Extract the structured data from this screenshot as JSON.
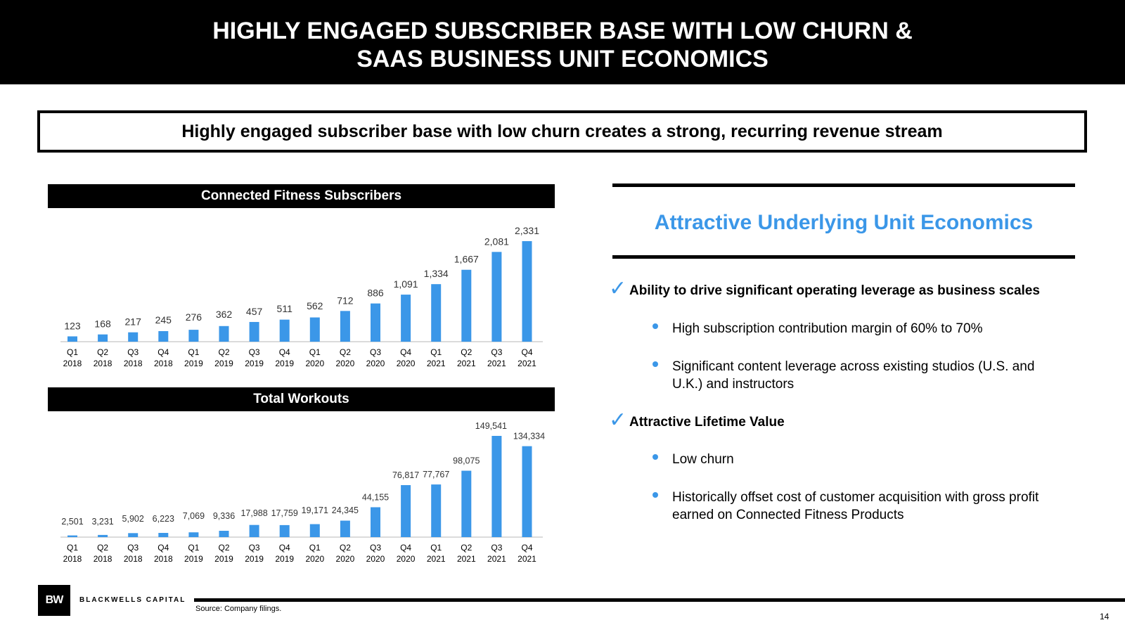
{
  "header": {
    "title_line1": "HIGHLY ENGAGED SUBSCRIBER BASE WITH LOW CHURN &",
    "title_line2": "SAAS BUSINESS UNIT ECONOMICS"
  },
  "callout": "Highly engaged subscriber base with low churn creates a strong, recurring revenue stream",
  "chart_data": [
    {
      "type": "bar",
      "title": "Connected Fitness Subscribers",
      "categories": [
        "Q1 2018",
        "Q2 2018",
        "Q3 2018",
        "Q4 2018",
        "Q1 2019",
        "Q2 2019",
        "Q3 2019",
        "Q4 2019",
        "Q1 2020",
        "Q2 2020",
        "Q3 2020",
        "Q4 2020",
        "Q1 2021",
        "Q2 2021",
        "Q3 2021",
        "Q4 2021"
      ],
      "values": [
        123,
        168,
        217,
        245,
        276,
        362,
        457,
        511,
        562,
        712,
        886,
        1091,
        1334,
        1667,
        2081,
        2331
      ],
      "value_labels": [
        "123",
        "168",
        "217",
        "245",
        "276",
        "362",
        "457",
        "511",
        "562",
        "712",
        "886",
        "1,091",
        "1,334",
        "1,667",
        "2,081",
        "2,331"
      ],
      "ylim": [
        0,
        2331
      ],
      "grid": false,
      "color": "#3b97e8"
    },
    {
      "type": "bar",
      "title": "Total Workouts",
      "categories": [
        "Q1 2018",
        "Q2 2018",
        "Q3 2018",
        "Q4 2018",
        "Q1 2019",
        "Q2 2019",
        "Q3 2019",
        "Q4 2019",
        "Q1 2020",
        "Q2 2020",
        "Q3 2020",
        "Q4 2020",
        "Q1 2021",
        "Q2 2021",
        "Q3 2021",
        "Q4 2021"
      ],
      "values": [
        2501,
        3231,
        5902,
        6223,
        7069,
        9336,
        17988,
        17759,
        19171,
        24345,
        44155,
        76817,
        77767,
        98075,
        149541,
        134334
      ],
      "value_labels": [
        "2,501",
        "3,231",
        "5,902",
        "6,223",
        "7,069",
        "9,336",
        "17,988",
        "17,759",
        "19,171",
        "24,345",
        "44,155",
        "76,817",
        "77,767",
        "98,075",
        "149,541",
        "134,334"
      ],
      "ylim": [
        0,
        149541
      ],
      "grid": false,
      "color": "#3b97e8"
    }
  ],
  "panel": {
    "title": "Attractive Underlying Unit Economics",
    "check_icon": "✓",
    "sections": [
      {
        "heading": "Ability to drive significant operating leverage as business scales",
        "bullets": [
          "High subscription contribution margin of 60% to 70%",
          "Significant content leverage across existing studios (U.S. and U.K.) and instructors"
        ]
      },
      {
        "heading": "Attractive Lifetime Value",
        "bullets": [
          "Low churn",
          "Historically offset cost of customer acquisition with gross profit earned on Connected Fitness Products"
        ]
      }
    ]
  },
  "footer": {
    "logo_text": "BW",
    "company": "BLACKWELLS CAPITAL",
    "source": "Source: Company filings.",
    "page": "14"
  },
  "colors": {
    "accent": "#3b97e8",
    "dark": "#000000"
  }
}
